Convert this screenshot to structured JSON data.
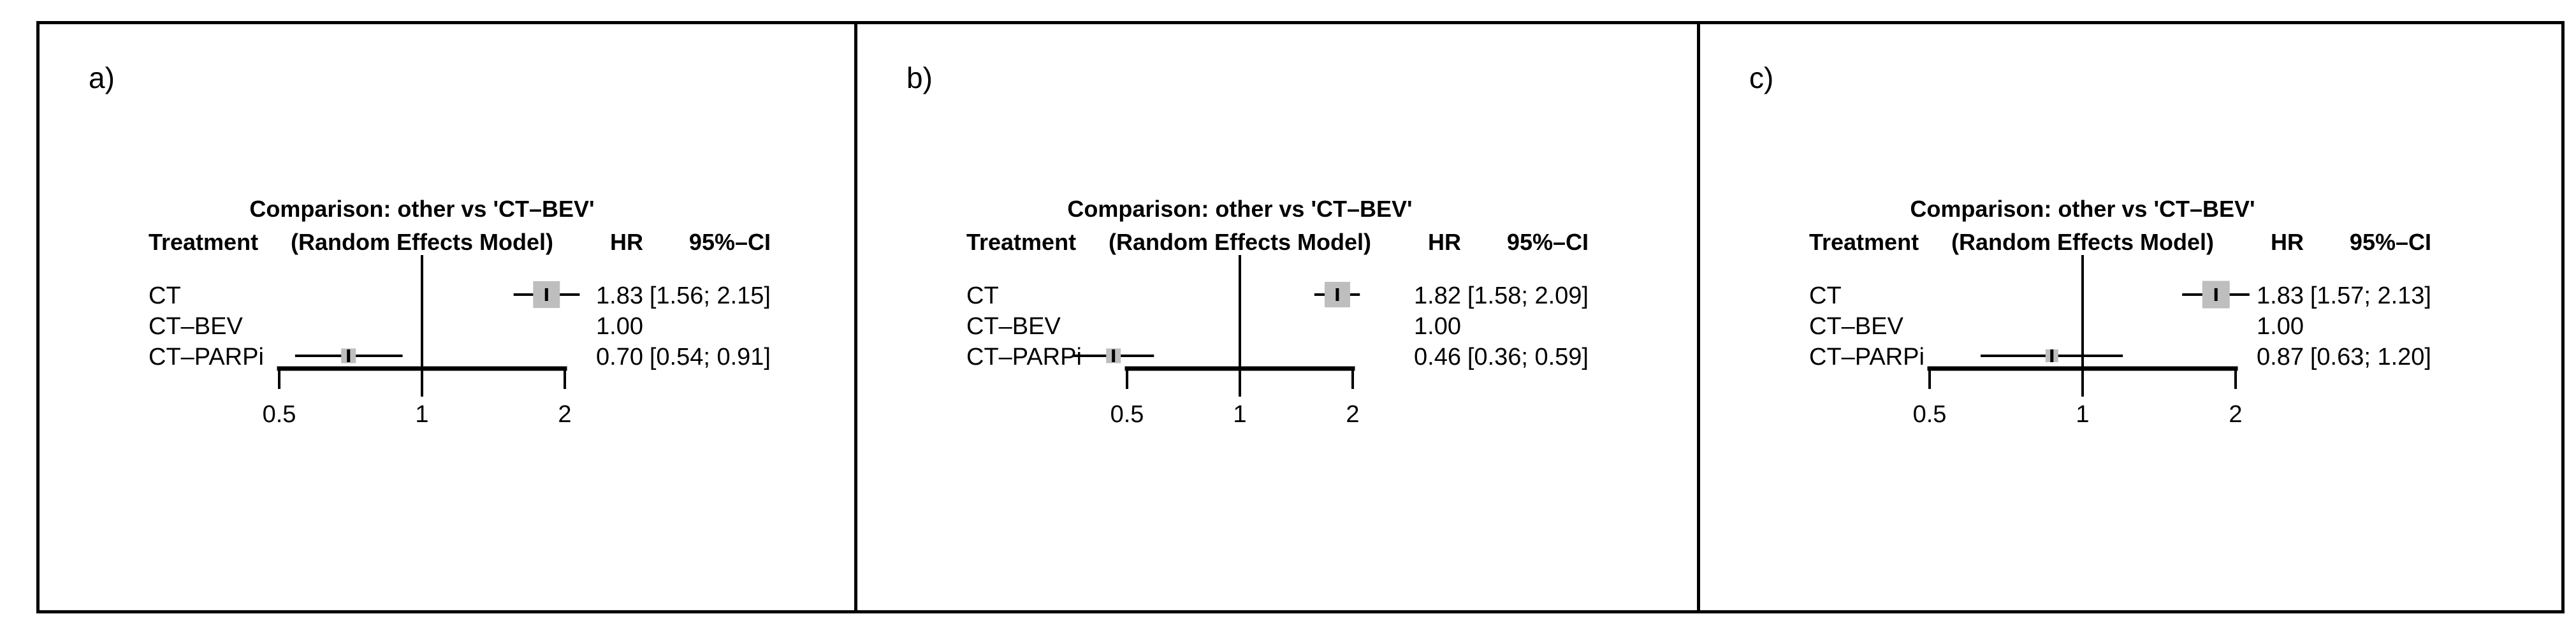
{
  "colors": {
    "marker_fill": "#bebebe",
    "line": "#000000",
    "border": "#000000",
    "background": "#ffffff"
  },
  "chart_data": [
    {
      "type": "forest",
      "panel_label": "a)",
      "title": "Comparison: other vs 'CT–BEV'",
      "model_label": "(Random Effects Model)",
      "columns": {
        "treatment": "Treatment",
        "hr": "HR",
        "ci": "95%–CI"
      },
      "x_axis": {
        "scale": "log",
        "range": [
          0.5,
          2
        ],
        "ref_value": 1,
        "ticks": [
          {
            "value": 0.5,
            "label": "0.5"
          },
          {
            "value": 1,
            "label": "1"
          },
          {
            "value": 2,
            "label": "2"
          }
        ]
      },
      "rows": [
        {
          "treatment": "CT",
          "hr": 1.83,
          "ci_low": 1.56,
          "ci_high": 2.15,
          "hr_label": "1.83",
          "ci_label": "[1.56; 2.15]",
          "marker_size": 42
        },
        {
          "treatment": "CT–BEV",
          "hr": 1.0,
          "ci_low": null,
          "ci_high": null,
          "hr_label": "1.00",
          "ci_label": "",
          "marker_size": 0
        },
        {
          "treatment": "CT–PARPi",
          "hr": 0.7,
          "ci_low": 0.54,
          "ci_high": 0.91,
          "hr_label": "0.70",
          "ci_label": "[0.54; 0.91]",
          "marker_size": 23
        }
      ]
    },
    {
      "type": "forest",
      "panel_label": "b)",
      "title": "Comparison: other vs 'CT–BEV'",
      "model_label": "(Random Effects Model)",
      "columns": {
        "treatment": "Treatment",
        "hr": "HR",
        "ci": "95%–CI"
      },
      "x_axis": {
        "scale": "log",
        "range": [
          0.5,
          2
        ],
        "ref_value": 1,
        "ticks": [
          {
            "value": 0.5,
            "label": "0.5"
          },
          {
            "value": 1,
            "label": "1"
          },
          {
            "value": 2,
            "label": "2"
          }
        ]
      },
      "rows": [
        {
          "treatment": "CT",
          "hr": 1.82,
          "ci_low": 1.58,
          "ci_high": 2.09,
          "hr_label": "1.82",
          "ci_label": "[1.58; 2.09]",
          "marker_size": 40
        },
        {
          "treatment": "CT–BEV",
          "hr": 1.0,
          "ci_low": null,
          "ci_high": null,
          "hr_label": "1.00",
          "ci_label": "",
          "marker_size": 0
        },
        {
          "treatment": "CT–PARPi",
          "hr": 0.46,
          "ci_low": 0.36,
          "ci_high": 0.59,
          "hr_label": "0.46",
          "ci_label": "[0.36; 0.59]",
          "marker_size": 23
        }
      ]
    },
    {
      "type": "forest",
      "panel_label": "c)",
      "title": "Comparison: other vs 'CT–BEV'",
      "model_label": "(Random Effects Model)",
      "columns": {
        "treatment": "Treatment",
        "hr": "HR",
        "ci": "95%–CI"
      },
      "x_axis": {
        "scale": "log",
        "range": [
          0.5,
          2
        ],
        "ref_value": 1,
        "ticks": [
          {
            "value": 0.5,
            "label": "0.5"
          },
          {
            "value": 1,
            "label": "1"
          },
          {
            "value": 2,
            "label": "2"
          }
        ]
      },
      "rows": [
        {
          "treatment": "CT",
          "hr": 1.83,
          "ci_low": 1.57,
          "ci_high": 2.13,
          "hr_label": "1.83",
          "ci_label": "[1.57; 2.13]",
          "marker_size": 43
        },
        {
          "treatment": "CT–BEV",
          "hr": 1.0,
          "ci_low": null,
          "ci_high": null,
          "hr_label": "1.00",
          "ci_label": "",
          "marker_size": 0
        },
        {
          "treatment": "CT–PARPi",
          "hr": 0.87,
          "ci_low": 0.63,
          "ci_high": 1.2,
          "hr_label": "0.87",
          "ci_label": "[0.63; 1.20]",
          "marker_size": 20
        }
      ]
    }
  ]
}
